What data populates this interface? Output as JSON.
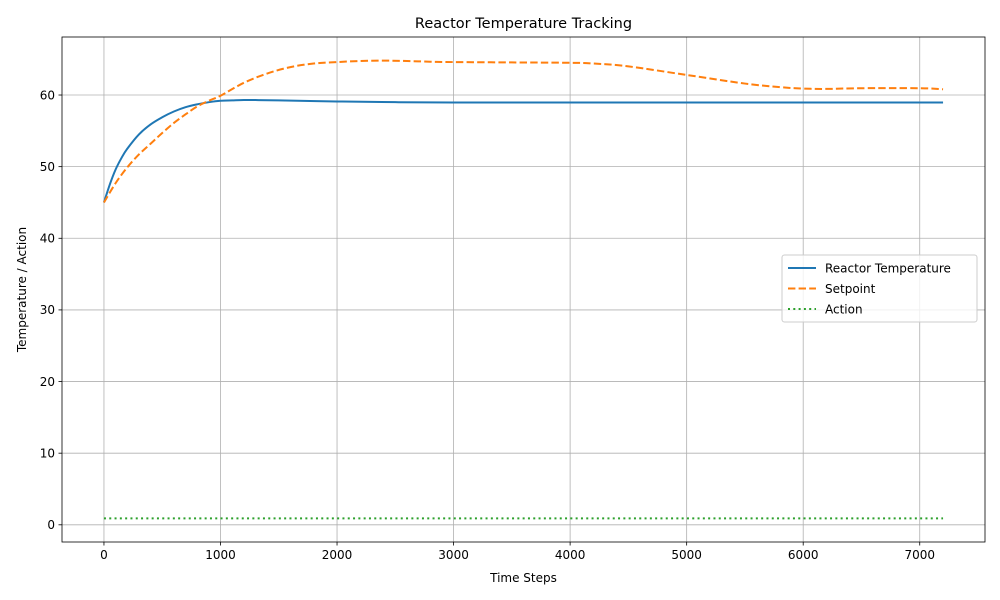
{
  "chart_data": {
    "type": "line",
    "title": "Reactor Temperature Tracking",
    "xlabel": "Time Steps",
    "ylabel": "Temperature / Action",
    "xlim": [
      -360,
      7560
    ],
    "ylim": [
      -2.4,
      68.1
    ],
    "xticks": [
      0,
      1000,
      2000,
      3000,
      4000,
      5000,
      6000,
      7000
    ],
    "xtick_labels": [
      "0",
      "1000",
      "2000",
      "3000",
      "4000",
      "5000",
      "6000",
      "7000"
    ],
    "yticks": [
      0,
      10,
      20,
      30,
      40,
      50,
      60
    ],
    "ytick_labels": [
      "0",
      "10",
      "20",
      "30",
      "40",
      "50",
      "60"
    ],
    "grid": true,
    "legend_position": "center-right",
    "series": [
      {
        "name": "Reactor Temperature",
        "color": "#1f77b4",
        "style": "solid",
        "x": [
          0,
          50,
          100,
          150,
          200,
          300,
          400,
          500,
          600,
          700,
          800,
          900,
          1000,
          1100,
          1200,
          1300,
          1500,
          2000,
          2500,
          3000,
          3500,
          4000,
          5000,
          6000,
          7000,
          7200
        ],
        "values": [
          45.0,
          47.5,
          49.6,
          51.2,
          52.5,
          54.5,
          55.9,
          56.9,
          57.7,
          58.3,
          58.7,
          59.0,
          59.2,
          59.25,
          59.3,
          59.3,
          59.25,
          59.1,
          59.0,
          58.95,
          58.95,
          58.95,
          58.95,
          58.95,
          58.95,
          58.95
        ]
      },
      {
        "name": "Setpoint",
        "color": "#ff7f0e",
        "style": "dashed",
        "x": [
          0,
          100,
          200,
          300,
          400,
          500,
          600,
          700,
          800,
          900,
          1000,
          1200,
          1400,
          1600,
          1800,
          2000,
          2200,
          2400,
          2600,
          2800,
          3000,
          3500,
          4000,
          4200,
          4500,
          5000,
          5500,
          5800,
          6000,
          6200,
          6500,
          7000,
          7200
        ],
        "values": [
          45.0,
          47.7,
          49.9,
          51.7,
          53.2,
          54.7,
          56.1,
          57.3,
          58.4,
          59.2,
          59.9,
          61.7,
          63.0,
          63.9,
          64.4,
          64.6,
          64.75,
          64.8,
          64.75,
          64.65,
          64.6,
          64.55,
          64.5,
          64.4,
          64.0,
          62.8,
          61.6,
          61.1,
          60.9,
          60.85,
          60.95,
          60.95,
          60.8
        ]
      },
      {
        "name": "Action",
        "color": "#2ca02c",
        "style": "dotted",
        "x": [
          0,
          7200
        ],
        "values": [
          0.9,
          0.9
        ]
      }
    ]
  }
}
